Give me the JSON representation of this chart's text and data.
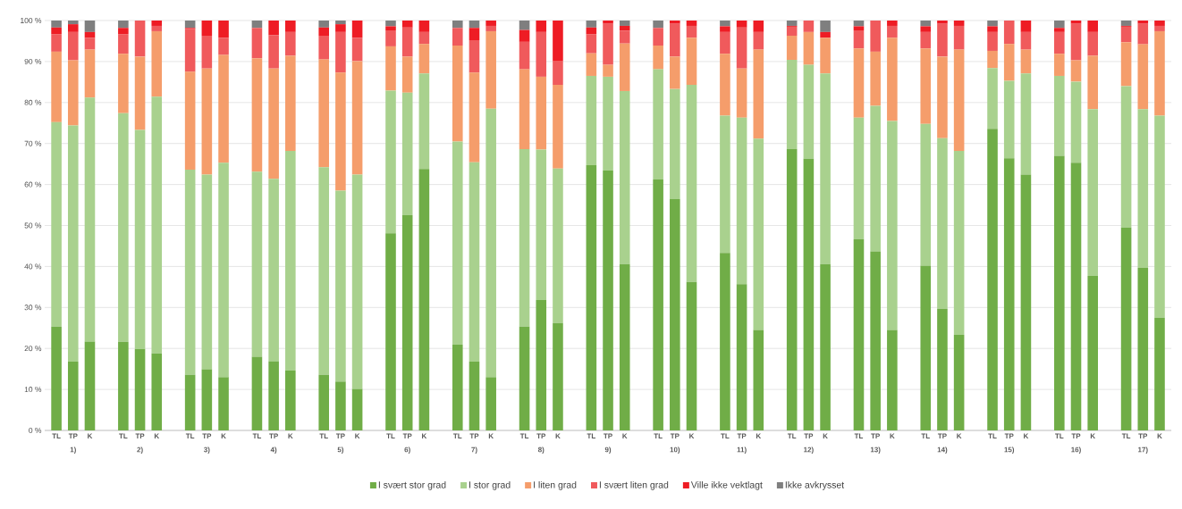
{
  "chart_data": {
    "type": "bar",
    "stacked": true,
    "grid": "y",
    "legend": "bottom",
    "ylim": [
      0,
      100
    ],
    "yticks": [
      {
        "value": 0,
        "label": "0 %"
      },
      {
        "value": 10,
        "label": "10 %"
      },
      {
        "value": 20,
        "label": "20 %"
      },
      {
        "value": 30,
        "label": "30 %"
      },
      {
        "value": 40,
        "label": "40 %"
      },
      {
        "value": 50,
        "label": "50 %"
      },
      {
        "value": 60,
        "label": "60 %"
      },
      {
        "value": 70,
        "label": "70 %"
      },
      {
        "value": 80,
        "label": "80 %"
      },
      {
        "value": 90,
        "label": "90 %"
      },
      {
        "value": 100,
        "label": "100 %"
      }
    ],
    "categories": [
      "TL",
      "TP",
      "K",
      null,
      "TL",
      "TP",
      "K",
      null,
      "TL",
      "TP",
      "K",
      null,
      "TL",
      "TP",
      "K",
      null,
      "TL",
      "TP",
      "K",
      null,
      "TL",
      "TP",
      "K",
      null,
      "TL",
      "TP",
      "K",
      null,
      "TL",
      "TP",
      "K",
      null,
      "TL",
      "TP",
      "K",
      null,
      "TL",
      "TP",
      "K",
      null,
      "TL",
      "TP",
      "K",
      null,
      "TL",
      "TP",
      "K",
      null,
      "TL",
      "TP",
      "K",
      null,
      "TL",
      "TP",
      "K",
      null,
      "TL",
      "TP",
      "K",
      null,
      "TL",
      "TP",
      "K",
      null,
      "TL",
      "TP",
      "K"
    ],
    "annotations": [
      "1)",
      "2)",
      "3)",
      "4)",
      "5)",
      "6)",
      "7)",
      "8)",
      "9)",
      "10)",
      "11)",
      "12)",
      "13)",
      "14)",
      "15)",
      "16)",
      "17)"
    ],
    "series": [
      {
        "name": "I svært stor grad",
        "color": "#70ad47",
        "values": [
          25.3,
          16.8,
          21.7,
          null,
          21.6,
          19.8,
          18.8,
          null,
          13.6,
          14.9,
          13.0,
          null,
          18.0,
          16.8,
          14.6,
          null,
          13.6,
          11.9,
          10.1,
          null,
          48.1,
          52.5,
          63.8,
          null,
          20.9,
          16.8,
          13.0,
          null,
          25.3,
          31.8,
          26.2,
          null,
          64.7,
          63.4,
          40.6,
          null,
          61.2,
          56.4,
          36.2,
          null,
          43.3,
          35.7,
          24.5,
          null,
          68.6,
          66.3,
          40.6,
          null,
          46.6,
          43.7,
          24.5,
          null,
          40.2,
          29.7,
          23.3,
          null,
          73.6,
          66.4,
          62.4,
          null,
          67.0,
          65.3,
          37.7,
          null,
          49.5,
          39.7,
          27.5
        ]
      },
      {
        "name": "I stor grad",
        "color": "#a9d18e",
        "values": [
          49.9,
          57.6,
          59.5,
          null,
          55.8,
          53.5,
          62.6,
          null,
          50.0,
          47.5,
          52.3,
          null,
          45.1,
          44.6,
          53.6,
          null,
          50.6,
          46.6,
          52.3,
          null,
          34.8,
          29.9,
          23.3,
          null,
          49.6,
          48.6,
          65.5,
          null,
          43.3,
          36.7,
          37.7,
          null,
          21.8,
          22.9,
          42.2,
          null,
          26.9,
          26.9,
          48.1,
          null,
          33.5,
          40.6,
          46.7,
          null,
          21.8,
          22.9,
          46.5,
          null,
          29.7,
          35.5,
          51.0,
          null,
          34.6,
          41.6,
          44.9,
          null,
          14.8,
          18.9,
          24.7,
          null,
          19.5,
          19.8,
          40.7,
          null,
          34.5,
          38.7,
          49.3
        ]
      },
      {
        "name": "I liten grad",
        "color": "#f59d6b",
        "values": [
          17.2,
          15.9,
          11.7,
          null,
          14.5,
          17.9,
          16.0,
          null,
          23.9,
          25.9,
          26.3,
          null,
          27.7,
          26.9,
          23.2,
          null,
          26.3,
          28.8,
          27.7,
          null,
          10.8,
          8.8,
          7.2,
          null,
          23.4,
          21.9,
          18.9,
          null,
          19.5,
          17.8,
          20.4,
          null,
          5.5,
          2.9,
          11.6,
          null,
          5.8,
          7.9,
          11.5,
          null,
          15.1,
          12.0,
          21.7,
          null,
          5.9,
          8.0,
          8.7,
          null,
          16.9,
          13.2,
          20.3,
          null,
          18.4,
          19.9,
          24.7,
          null,
          4.2,
          9.0,
          5.8,
          null,
          5.4,
          5.2,
          13.0,
          null,
          10.7,
          15.8,
          20.6
        ]
      },
      {
        "name": "I svært liten grad",
        "color": "#f05a5c",
        "values": [
          4.3,
          6.9,
          2.9,
          null,
          4.8,
          8.8,
          1.3,
          null,
          10.5,
          8.0,
          4.2,
          null,
          7.4,
          8.1,
          5.8,
          null,
          5.8,
          9.9,
          5.7,
          null,
          3.9,
          7.1,
          2.9,
          null,
          4.3,
          7.9,
          1.3,
          null,
          6.7,
          10.9,
          5.9,
          null,
          4.7,
          10.0,
          3.1,
          null,
          4.3,
          8.0,
          2.9,
          null,
          5.3,
          10.0,
          4.3,
          null,
          2.2,
          2.8,
          0,
          null,
          4.4,
          7.6,
          2.9,
          null,
          4.0,
          8.0,
          5.8,
          null,
          4.6,
          5.7,
          4.3,
          null,
          5.3,
          8.9,
          5.8,
          null,
          3.8,
          5.0,
          1.3
        ]
      },
      {
        "name": "Ville ikke vektlagt",
        "color": "#ee1c24",
        "values": [
          1.6,
          1.9,
          1.4,
          null,
          1.5,
          0,
          1.3,
          null,
          0.2,
          3.7,
          4.2,
          null,
          0,
          3.6,
          2.8,
          null,
          2.0,
          1.9,
          4.2,
          null,
          1.0,
          1.7,
          2.8,
          null,
          0,
          3.0,
          1.3,
          null,
          2.9,
          2.8,
          9.8,
          null,
          1.6,
          0.8,
          1.2,
          null,
          0,
          0.8,
          1.3,
          null,
          1.4,
          1.7,
          2.8,
          null,
          0.2,
          0,
          1.4,
          null,
          1.0,
          0,
          1.3,
          null,
          1.4,
          0.8,
          1.3,
          null,
          1.4,
          0,
          2.8,
          null,
          1.0,
          0.8,
          2.8,
          null,
          0.2,
          0.8,
          1.3
        ]
      },
      {
        "name": "Ikke avkrysset",
        "color": "#7f7f7f",
        "values": [
          1.7,
          0.9,
          2.8,
          null,
          1.8,
          0,
          0,
          null,
          1.8,
          0,
          0,
          null,
          1.8,
          0,
          0,
          null,
          1.7,
          0.9,
          0,
          null,
          1.4,
          0,
          0,
          null,
          1.8,
          1.8,
          0,
          null,
          2.3,
          0,
          0,
          null,
          1.7,
          0,
          1.3,
          null,
          1.8,
          0,
          0,
          null,
          1.4,
          0,
          0,
          null,
          1.3,
          0,
          2.8,
          null,
          1.4,
          0,
          0,
          null,
          1.4,
          0,
          0,
          null,
          1.4,
          0,
          0,
          null,
          1.8,
          0,
          0,
          null,
          1.3,
          0,
          0
        ]
      }
    ]
  }
}
